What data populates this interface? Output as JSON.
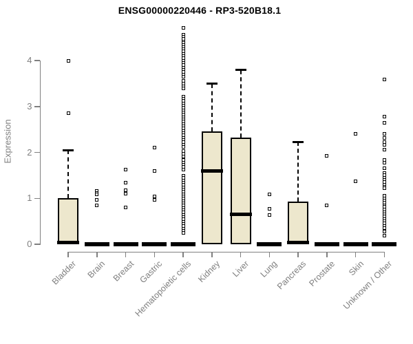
{
  "title": "ENSG00000220446 - RP3-520B18.1",
  "colors": {
    "background": "#FFFFFF",
    "box_fill": "#EDE7CD",
    "box_border": "#000000",
    "axis_gray": "#7F7F7F",
    "title_color": "#000000"
  },
  "chart_data": {
    "type": "boxplot",
    "title": "ENSG00000220446 - RP3-520B18.1",
    "xlabel": "",
    "ylabel": "Expression",
    "ylim": [
      0,
      4.8
    ],
    "yticks": [
      0,
      1,
      2,
      3,
      4
    ],
    "grid": false,
    "legend": false,
    "categories": [
      "Bladder",
      "Brain",
      "Breast",
      "Gastric",
      "Hematopoietic cells",
      "Kidney",
      "Liver",
      "Lung",
      "Pancreas",
      "Prostate",
      "Skin",
      "Unknown / Other"
    ],
    "series": [
      {
        "category": "Bladder",
        "q1": 0,
        "median": 0.03,
        "q3": 1.0,
        "whisker_low": 0,
        "whisker_high": 2.05,
        "outliers": [
          2.85,
          4.0
        ]
      },
      {
        "category": "Brain",
        "q1": 0,
        "median": 0.02,
        "q3": 0.02,
        "whisker_low": 0,
        "whisker_high": 0.02,
        "outliers": [
          1.16,
          1.12,
          1.08,
          0.96,
          0.85
        ]
      },
      {
        "category": "Breast",
        "q1": 0,
        "median": 0.02,
        "q3": 0.02,
        "whisker_low": 0,
        "whisker_high": 0.02,
        "outliers": [
          1.62,
          1.34,
          1.18,
          1.1,
          0.8
        ]
      },
      {
        "category": "Gastric",
        "q1": 0,
        "median": 0.02,
        "q3": 0.02,
        "whisker_low": 0,
        "whisker_high": 0.02,
        "outliers": [
          2.1,
          1.6,
          1.04,
          0.96
        ]
      },
      {
        "category": "Hematopoietic cells",
        "q1": 0,
        "median": 0.02,
        "q3": 0.02,
        "whisker_low": 0,
        "whisker_high": 0.02,
        "outliers": [
          4.72,
          4.57,
          4.52,
          4.47,
          4.42,
          4.38,
          4.34,
          4.3,
          4.25,
          4.2,
          4.15,
          4.1,
          4.05,
          4.0,
          3.95,
          3.9,
          3.85,
          3.8,
          3.75,
          3.7,
          3.65,
          3.56,
          3.5,
          3.44,
          3.4,
          3.22,
          3.17,
          3.12,
          3.07,
          3.02,
          2.97,
          2.92,
          2.87,
          2.82,
          2.77,
          2.72,
          2.67,
          2.62,
          2.57,
          2.52,
          2.47,
          2.42,
          2.37,
          2.32,
          2.27,
          2.22,
          2.17,
          2.12,
          2.03,
          1.97,
          1.91,
          1.83,
          1.78,
          1.73,
          1.68,
          1.63,
          1.49,
          1.44,
          1.39,
          1.34,
          1.29,
          1.24,
          1.19,
          1.14,
          1.09,
          1.04,
          0.99,
          0.94,
          0.89,
          0.84,
          0.79,
          0.74,
          0.69,
          0.64,
          0.59,
          0.54,
          0.49,
          0.44,
          0.39,
          0.34,
          0.29,
          0.24
        ]
      },
      {
        "category": "Kidney",
        "q1": 0,
        "median": 1.6,
        "q3": 2.46,
        "whisker_low": 0,
        "whisker_high": 3.5,
        "outliers": []
      },
      {
        "category": "Liver",
        "q1": 0,
        "median": 0.65,
        "q3": 2.33,
        "whisker_low": 0,
        "whisker_high": 3.8,
        "outliers": []
      },
      {
        "category": "Lung",
        "q1": 0,
        "median": 0.02,
        "q3": 0.02,
        "whisker_low": 0,
        "whisker_high": 0.02,
        "outliers": [
          1.09,
          0.77,
          0.63
        ]
      },
      {
        "category": "Pancreas",
        "q1": 0,
        "median": 0.03,
        "q3": 0.93,
        "whisker_low": 0,
        "whisker_high": 2.23,
        "outliers": []
      },
      {
        "category": "Prostate",
        "q1": 0,
        "median": 0.02,
        "q3": 0.02,
        "whisker_low": 0,
        "whisker_high": 0.02,
        "outliers": [
          1.93,
          0.84
        ]
      },
      {
        "category": "Skin",
        "q1": 0,
        "median": 0.02,
        "q3": 0.02,
        "whisker_low": 0,
        "whisker_high": 0.02,
        "outliers": [
          2.4,
          1.37
        ]
      },
      {
        "category": "Unknown / Other",
        "q1": 0,
        "median": 0.02,
        "q3": 0.02,
        "whisker_low": 0,
        "whisker_high": 0.02,
        "outliers": [
          3.59,
          2.78,
          2.64,
          2.4,
          2.32,
          2.23,
          2.17,
          2.06,
          1.83,
          1.77,
          1.66,
          1.55,
          1.5,
          1.45,
          1.4,
          1.35,
          1.3,
          1.25,
          1.22,
          1.05,
          1.0,
          0.95,
          0.9,
          0.85,
          0.82,
          0.75,
          0.7,
          0.65,
          0.6,
          0.55,
          0.5,
          0.45,
          0.4,
          0.35,
          0.27,
          0.18
        ]
      }
    ]
  }
}
